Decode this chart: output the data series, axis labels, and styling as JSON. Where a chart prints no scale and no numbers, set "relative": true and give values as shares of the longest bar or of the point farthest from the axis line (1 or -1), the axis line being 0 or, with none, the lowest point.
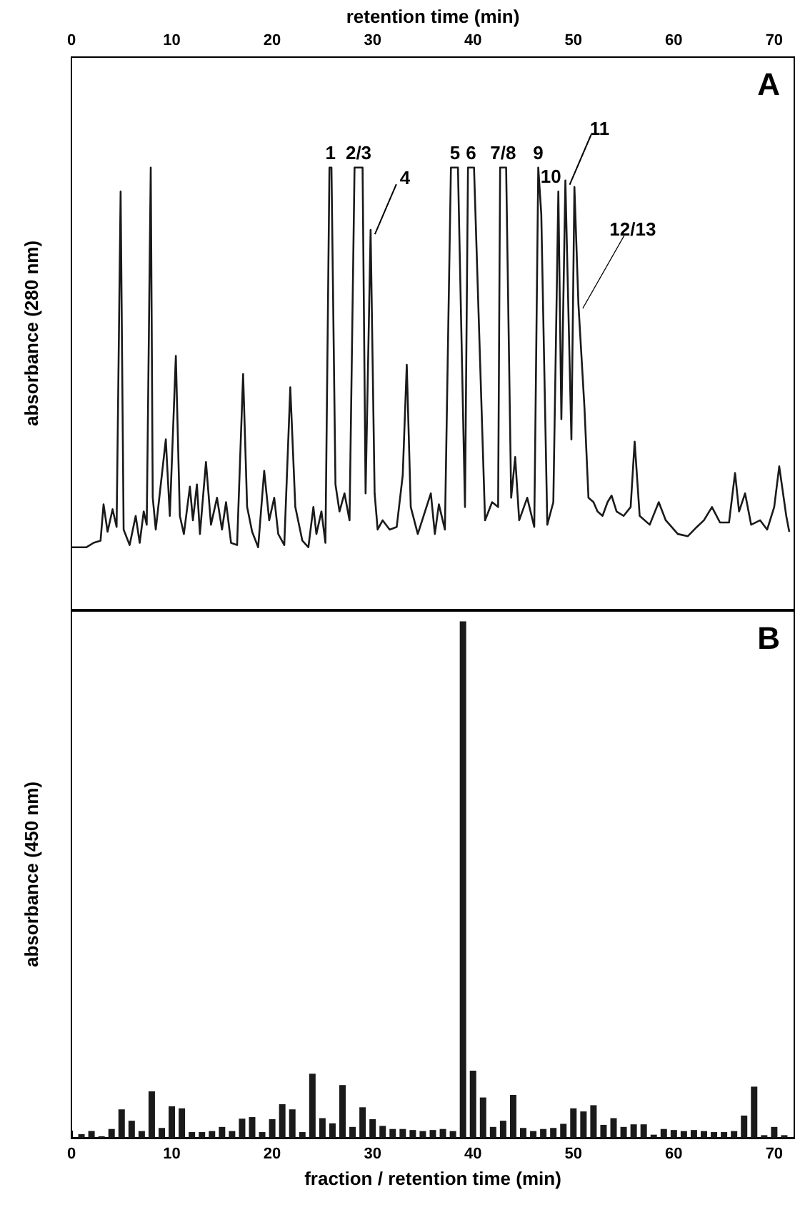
{
  "chart_data": [
    {
      "type": "line",
      "xlabel": "retention time (min)",
      "ylabel": "absorbance (280 nm)",
      "relative": true,
      "xlim": [
        0,
        72
      ],
      "xticks": [
        0,
        10,
        20,
        30,
        40,
        50,
        60,
        70
      ],
      "grid": false,
      "marker": "none",
      "line_style": "solid",
      "annotations": [
        "A",
        {
          "text": "1",
          "x": 25.8,
          "y": 1
        },
        {
          "text": "2/3",
          "x": 28.6,
          "y": 1
        },
        {
          "text": "4",
          "x": 29.8,
          "y": 0.859
        },
        {
          "text": "5",
          "x": 38.2,
          "y": 1
        },
        {
          "text": "6",
          "x": 39.8,
          "y": 1
        },
        {
          "text": "7/8",
          "x": 43.0,
          "y": 1
        },
        {
          "text": "9",
          "x": 46.5,
          "y": 1
        },
        {
          "text": "10",
          "x": 48.5,
          "y": 0.946
        },
        {
          "text": "11",
          "x": 49.2,
          "y": 0.971
        },
        {
          "text": "12/13",
          "x": 50.5,
          "y": 0.691
        }
      ],
      "series": [
        {
          "color": "#1a1a1a",
          "x": [
            0,
            1.5,
            2.2,
            2.9,
            3.2,
            3.6,
            4.1,
            4.5,
            4.9,
            5.2,
            5.8,
            6.4,
            6.8,
            7.2,
            7.5,
            7.9,
            8.1,
            8.4,
            9.4,
            9.8,
            10.4,
            10.8,
            11.2,
            11.8,
            12.1,
            12.5,
            12.8,
            13.4,
            13.9,
            14.5,
            15.0,
            15.4,
            15.9,
            16.5,
            17.1,
            17.5,
            18.0,
            18.6,
            19.2,
            19.7,
            20.2,
            20.6,
            21.2,
            21.8,
            22.3,
            23.0,
            23.6,
            24.1,
            24.4,
            24.9,
            25.3,
            25.7,
            25.9,
            26.3,
            26.7,
            27.2,
            27.7,
            28.2,
            29.0,
            29.3,
            29.8,
            30.2,
            30.5,
            31.0,
            31.7,
            32.4,
            33.0,
            33.4,
            33.8,
            34.5,
            35.8,
            36.2,
            36.6,
            37.2,
            37.8,
            38.5,
            39.2,
            39.5,
            40.1,
            41.2,
            41.9,
            42.5,
            42.7,
            43.3,
            43.8,
            44.2,
            44.6,
            45.4,
            46.1,
            46.5,
            46.8,
            47.4,
            48.0,
            48.5,
            48.8,
            49.2,
            49.8,
            50.1,
            50.5,
            51.1,
            51.5,
            52.0,
            52.4,
            52.9,
            53.4,
            53.8,
            54.3,
            55.0,
            55.7,
            56.1,
            56.6,
            57.6,
            58.5,
            59.2,
            60.4,
            61.4,
            62.3,
            63.0,
            63.8,
            64.6,
            65.5,
            66.1,
            66.5,
            67.1,
            67.7,
            68.6,
            69.3,
            70.0,
            70.5,
            71.2,
            71.5
          ],
          "values": [
            0.141,
            0.141,
            0.151,
            0.156,
            0.238,
            0.176,
            0.227,
            0.187,
            0.946,
            0.181,
            0.146,
            0.212,
            0.151,
            0.222,
            0.192,
            1,
            0.253,
            0.181,
            0.385,
            0.212,
            0.574,
            0.212,
            0.171,
            0.278,
            0.202,
            0.283,
            0.171,
            0.334,
            0.192,
            0.253,
            0.181,
            0.243,
            0.151,
            0.146,
            0.533,
            0.232,
            0.176,
            0.141,
            0.314,
            0.202,
            0.253,
            0.171,
            0.146,
            0.503,
            0.232,
            0.156,
            0.141,
            0.232,
            0.171,
            0.222,
            0.151,
            1,
            1,
            0.283,
            0.222,
            0.263,
            0.202,
            1,
            1,
            0.263,
            0.859,
            0.263,
            0.181,
            0.202,
            0.181,
            0.187,
            0.304,
            0.554,
            0.232,
            0.171,
            0.263,
            0.171,
            0.238,
            0.181,
            1,
            1,
            0.232,
            1,
            1,
            0.202,
            0.243,
            0.232,
            1,
            1,
            0.253,
            0.345,
            0.202,
            0.253,
            0.187,
            1,
            0.895,
            0.192,
            0.243,
            0.946,
            0.431,
            0.971,
            0.385,
            0.956,
            0.691,
            0.457,
            0.253,
            0.243,
            0.222,
            0.212,
            0.243,
            0.258,
            0.222,
            0.212,
            0.232,
            0.38,
            0.212,
            0.192,
            0.243,
            0.202,
            0.171,
            0.166,
            0.187,
            0.202,
            0.232,
            0.197,
            0.197,
            0.309,
            0.222,
            0.263,
            0.192,
            0.202,
            0.181,
            0.232,
            0.324,
            0.212,
            0.176
          ]
        }
      ]
    },
    {
      "type": "bar",
      "xlabel": "fraction / retention time (min)",
      "ylabel": "absorbance (450 nm)",
      "relative": true,
      "xlim": [
        0,
        72
      ],
      "xticks": [
        0,
        10,
        20,
        30,
        40,
        50,
        60,
        70
      ],
      "grid": false,
      "annotations": [
        "B"
      ],
      "series": [
        {
          "color": "#1a1a1a",
          "x": [
            1,
            2,
            3,
            4,
            5,
            6,
            7,
            8,
            9,
            10,
            11,
            12,
            13,
            14,
            15,
            16,
            17,
            18,
            19,
            20,
            21,
            22,
            23,
            24,
            25,
            26,
            27,
            28,
            29,
            30,
            31,
            32,
            33,
            34,
            35,
            36,
            37,
            38,
            39,
            40,
            41,
            42,
            43,
            44,
            45,
            46,
            47,
            48,
            49,
            50,
            51,
            52,
            53,
            54,
            55,
            56,
            57,
            58,
            59,
            60,
            61,
            62,
            63,
            64,
            65,
            66,
            67,
            68,
            69,
            70,
            71
          ],
          "values": [
            0.007,
            0.013,
            0.003,
            0.017,
            0.055,
            0.033,
            0.013,
            0.09,
            0.019,
            0.061,
            0.057,
            0.011,
            0.011,
            0.013,
            0.021,
            0.013,
            0.037,
            0.04,
            0.011,
            0.036,
            0.065,
            0.055,
            0.011,
            0.124,
            0.038,
            0.028,
            0.102,
            0.021,
            0.059,
            0.036,
            0.023,
            0.017,
            0.017,
            0.015,
            0.013,
            0.015,
            0.017,
            0.013,
            1,
            0.13,
            0.078,
            0.021,
            0.033,
            0.083,
            0.019,
            0.013,
            0.017,
            0.019,
            0.027,
            0.057,
            0.051,
            0.063,
            0.025,
            0.038,
            0.021,
            0.026,
            0.026,
            0.006,
            0.017,
            0.015,
            0.013,
            0.015,
            0.013,
            0.011,
            0.011,
            0.013,
            0.043,
            0.099,
            0.005,
            0.021,
            0.005
          ]
        }
      ]
    }
  ]
}
